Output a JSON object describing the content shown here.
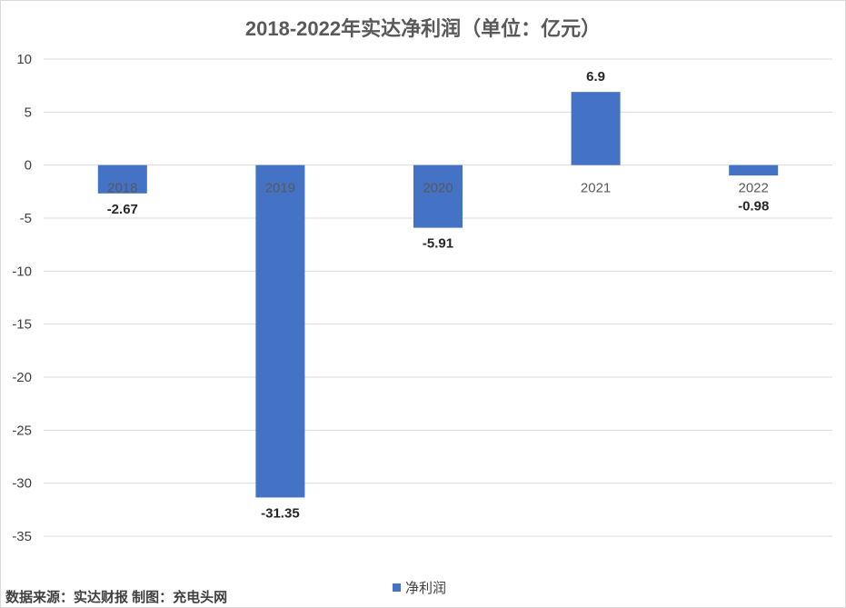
{
  "chart_data": {
    "type": "bar",
    "title": "2018-2022年实达净利润（单位：亿元）",
    "categories": [
      "2018",
      "2019",
      "2020",
      "2021",
      "2022"
    ],
    "series": [
      {
        "name": "净利润",
        "values": [
          -2.67,
          -31.35,
          -5.91,
          6.9,
          -0.98
        ],
        "color": "#4472c4"
      }
    ],
    "data_labels": [
      "-2.67",
      "-31.35",
      "-5.91",
      "6.9",
      "-0.98"
    ],
    "ylim": [
      -35,
      10
    ],
    "yticks": [
      10,
      5,
      0,
      -5,
      -10,
      -15,
      -20,
      -25,
      -30,
      -35
    ],
    "grid": true,
    "legend": "bottom"
  },
  "source_note": "数据来源：实达财报  制图：充电头网"
}
